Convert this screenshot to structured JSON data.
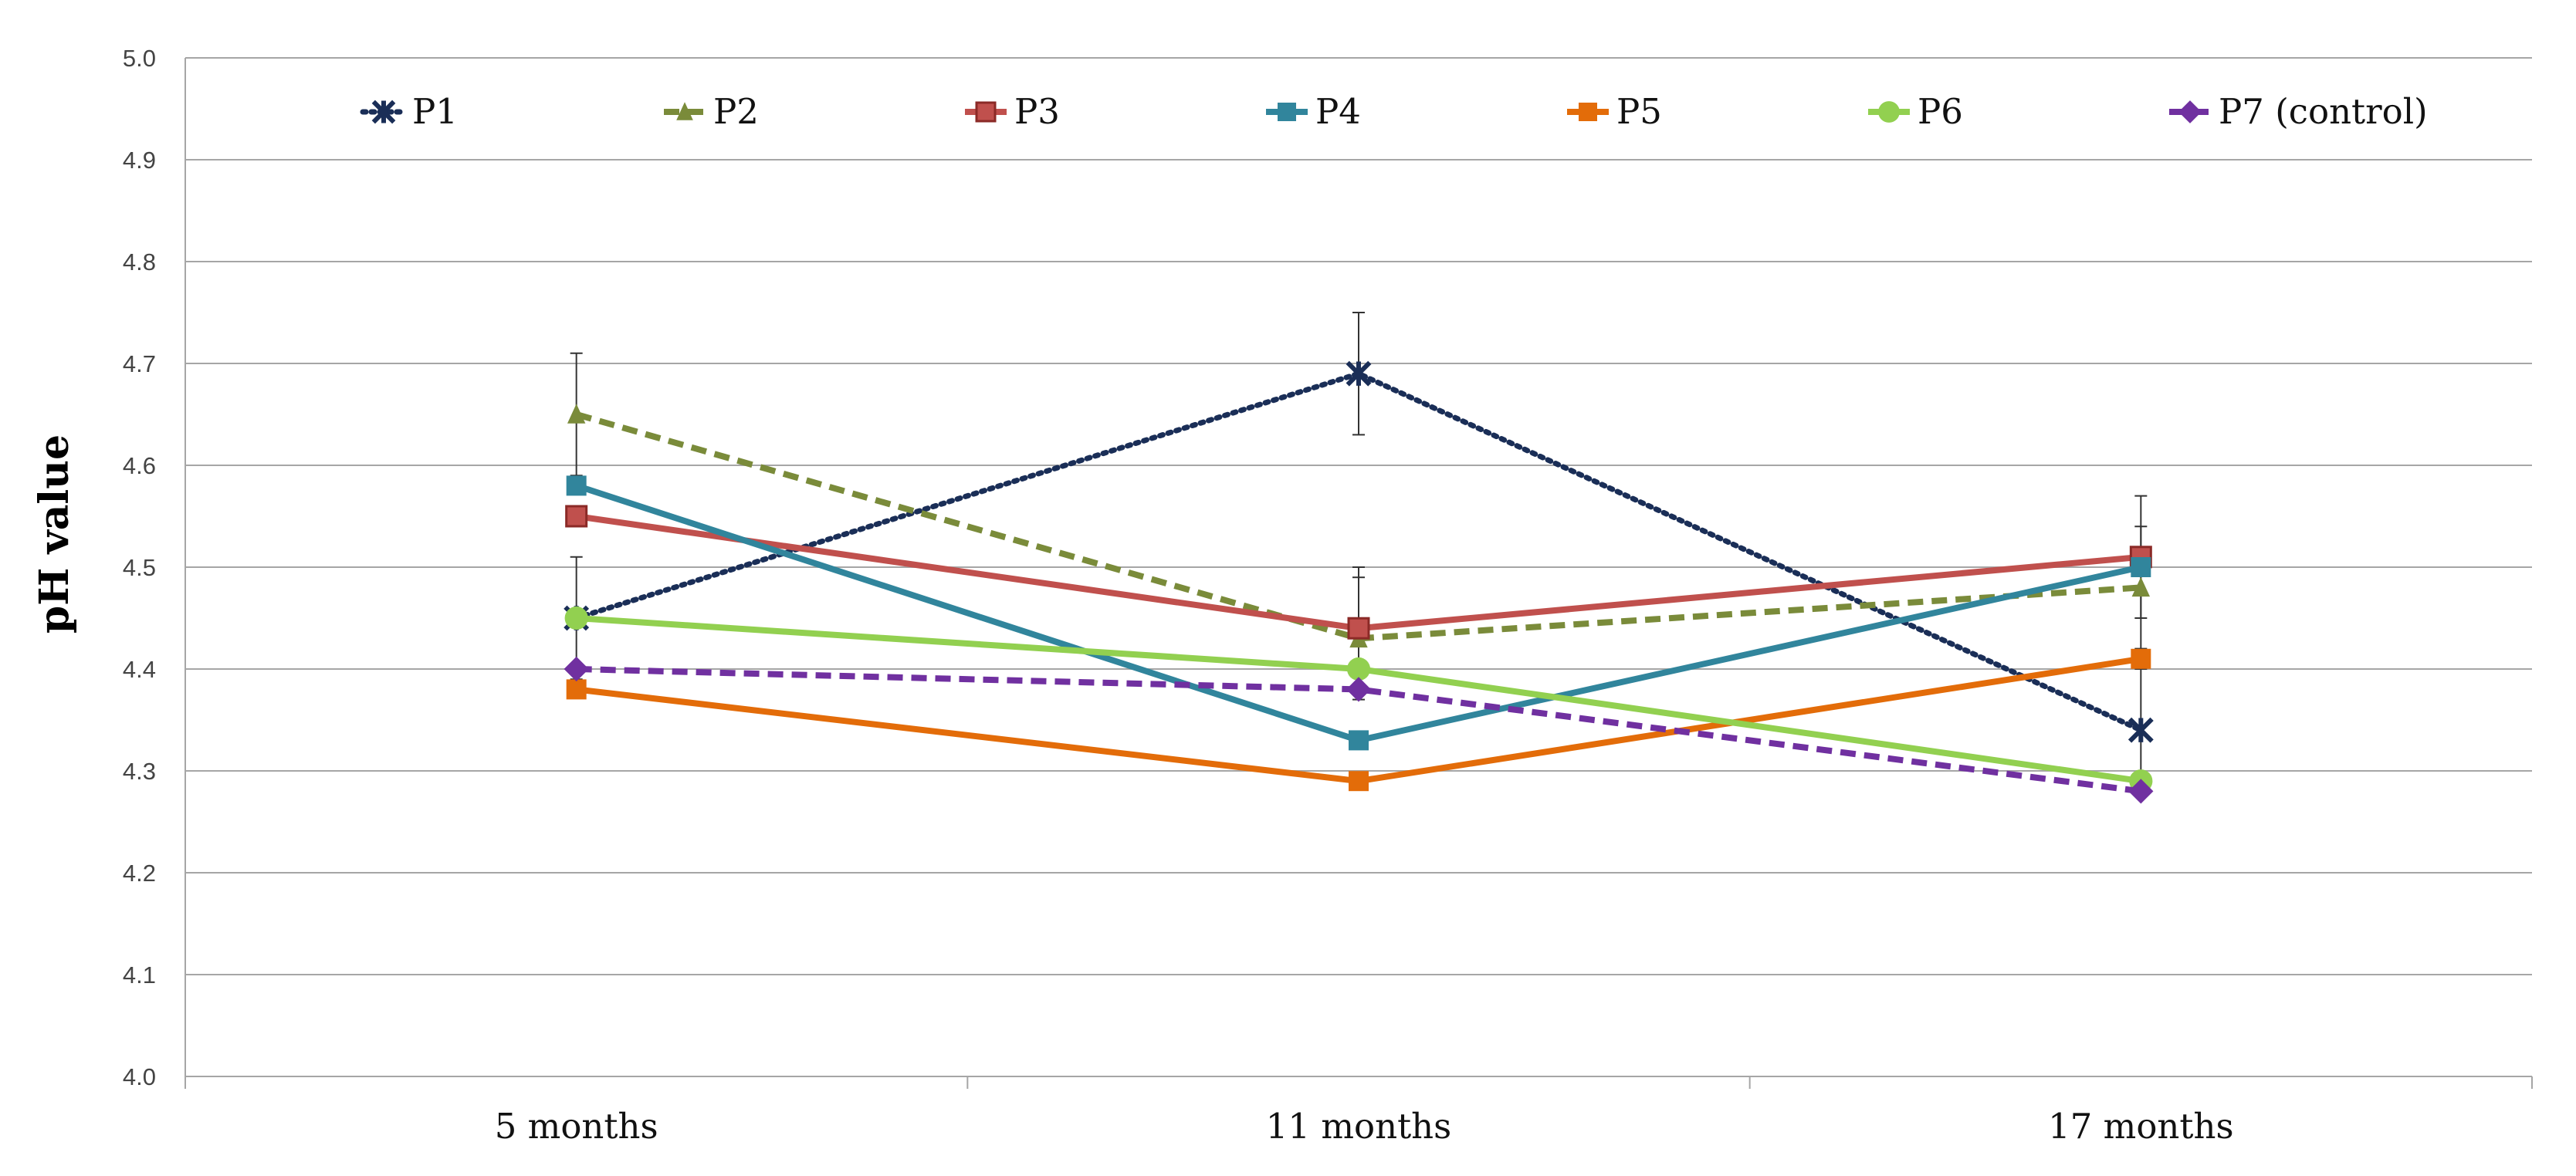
{
  "chart_data": {
    "type": "line",
    "title": "",
    "xlabel": "",
    "ylabel": "pH value",
    "ylim": [
      4.0,
      5.0
    ],
    "y_ticks": [
      "4.0",
      "4.1",
      "4.2",
      "4.3",
      "4.4",
      "4.5",
      "4.6",
      "4.7",
      "4.8",
      "4.9",
      "5.0"
    ],
    "categories": [
      "5 months",
      "11 months",
      "17 months"
    ],
    "grid": true,
    "legend_position": "top",
    "series": [
      {
        "name": "P1",
        "values": [
          4.45,
          4.69,
          4.34
        ],
        "errors": [
          0.06,
          0.06,
          0.06
        ],
        "color": "#1a2e57",
        "dash": "dotted",
        "marker": "star"
      },
      {
        "name": "P2",
        "values": [
          4.65,
          4.43,
          4.48
        ],
        "errors": [
          0.06,
          0.06,
          0.06
        ],
        "color": "#7a8b3a",
        "dash": "dashed",
        "marker": "triangle"
      },
      {
        "name": "P3",
        "values": [
          4.55,
          4.44,
          4.51
        ],
        "errors": [
          0.0,
          0.06,
          0.06
        ],
        "color": "#c0504d",
        "dash": "solid",
        "marker": "square-outline"
      },
      {
        "name": "P4",
        "values": [
          4.58,
          4.33,
          4.5
        ],
        "errors": [
          0.0,
          0.0,
          0.0
        ],
        "color": "#31859c",
        "dash": "solid",
        "marker": "square"
      },
      {
        "name": "P5",
        "values": [
          4.38,
          4.29,
          4.41
        ],
        "errors": [
          0.0,
          0.0,
          0.0
        ],
        "color": "#e36c09",
        "dash": "solid",
        "marker": "square"
      },
      {
        "name": "P6",
        "values": [
          4.45,
          4.4,
          4.29
        ],
        "errors": [
          0.0,
          0.0,
          0.0
        ],
        "color": "#92d050",
        "dash": "solid",
        "marker": "circle"
      },
      {
        "name": "P7 (control)",
        "values": [
          4.4,
          4.38,
          4.28
        ],
        "errors": [
          0.0,
          0.0,
          0.0
        ],
        "color": "#7030a0",
        "dash": "dashed",
        "marker": "diamond"
      }
    ]
  }
}
